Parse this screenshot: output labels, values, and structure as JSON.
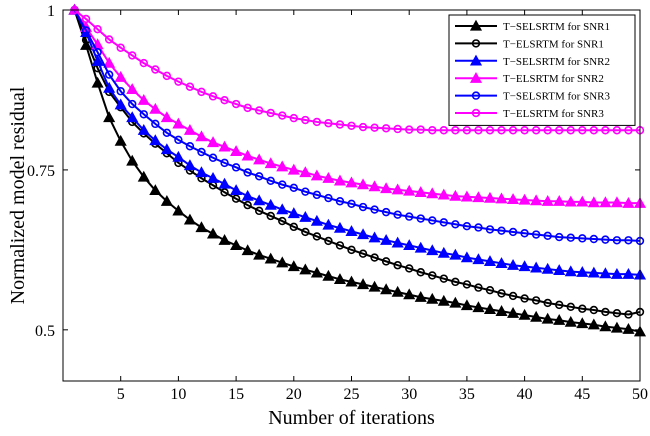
{
  "chart_data": {
    "type": "line",
    "title": "",
    "xlabel": "Number of iterations",
    "ylabel": "Normalized model residual",
    "xlim": [
      0,
      50
    ],
    "ylim": [
      0.42,
      1.0
    ],
    "x_ticks": [
      5,
      10,
      15,
      20,
      25,
      30,
      35,
      40,
      45,
      50
    ],
    "y_ticks": [
      0.5,
      0.75,
      1
    ],
    "y_tick_labels": [
      "0.5",
      "0.75",
      "1"
    ],
    "grid": false,
    "legend_position": "top-right",
    "x": [
      1,
      2,
      3,
      4,
      5,
      6,
      7,
      8,
      9,
      10,
      11,
      12,
      13,
      14,
      15,
      16,
      17,
      18,
      19,
      20,
      21,
      22,
      23,
      24,
      25,
      26,
      27,
      28,
      29,
      30,
      31,
      32,
      33,
      34,
      35,
      36,
      37,
      38,
      39,
      40,
      41,
      42,
      43,
      44,
      45,
      46,
      47,
      48,
      49,
      50
    ],
    "series": [
      {
        "name": "T−SELSRTM for SNR1",
        "color": "#000000",
        "marker": "triangle",
        "values": [
          1.0,
          0.945,
          0.886,
          0.832,
          0.795,
          0.764,
          0.739,
          0.718,
          0.701,
          0.686,
          0.672,
          0.66,
          0.65,
          0.64,
          0.632,
          0.624,
          0.617,
          0.611,
          0.605,
          0.599,
          0.594,
          0.589,
          0.584,
          0.579,
          0.575,
          0.571,
          0.567,
          0.563,
          0.559,
          0.555,
          0.551,
          0.548,
          0.545,
          0.542,
          0.538,
          0.535,
          0.532,
          0.529,
          0.526,
          0.523,
          0.52,
          0.517,
          0.515,
          0.512,
          0.51,
          0.508,
          0.505,
          0.503,
          0.501,
          0.497
        ]
      },
      {
        "name": "T−ELSRTM for SNR1",
        "color": "#000000",
        "marker": "circle",
        "values": [
          1.0,
          0.953,
          0.909,
          0.872,
          0.848,
          0.825,
          0.807,
          0.791,
          0.776,
          0.761,
          0.749,
          0.737,
          0.726,
          0.715,
          0.705,
          0.695,
          0.686,
          0.678,
          0.67,
          0.661,
          0.653,
          0.646,
          0.639,
          0.632,
          0.625,
          0.619,
          0.613,
          0.607,
          0.601,
          0.596,
          0.59,
          0.585,
          0.58,
          0.575,
          0.571,
          0.566,
          0.562,
          0.557,
          0.553,
          0.549,
          0.546,
          0.542,
          0.539,
          0.536,
          0.533,
          0.531,
          0.528,
          0.526,
          0.524,
          0.528
        ]
      },
      {
        "name": "T−SELSRTM for SNR2",
        "color": "#0000ff",
        "marker": "triangle",
        "values": [
          1.0,
          0.965,
          0.92,
          0.878,
          0.852,
          0.832,
          0.812,
          0.796,
          0.782,
          0.77,
          0.757,
          0.746,
          0.737,
          0.728,
          0.718,
          0.709,
          0.702,
          0.695,
          0.688,
          0.682,
          0.676,
          0.67,
          0.664,
          0.659,
          0.654,
          0.649,
          0.644,
          0.64,
          0.636,
          0.632,
          0.628,
          0.624,
          0.62,
          0.617,
          0.613,
          0.61,
          0.607,
          0.604,
          0.601,
          0.599,
          0.597,
          0.595,
          0.593,
          0.591,
          0.59,
          0.589,
          0.588,
          0.587,
          0.587,
          0.586
        ]
      },
      {
        "name": "T−ELSRTM for SNR2",
        "color": "#ff00ff",
        "marker": "triangle",
        "values": [
          1.0,
          0.973,
          0.946,
          0.917,
          0.895,
          0.876,
          0.859,
          0.845,
          0.832,
          0.822,
          0.812,
          0.802,
          0.793,
          0.786,
          0.779,
          0.772,
          0.766,
          0.76,
          0.755,
          0.75,
          0.746,
          0.741,
          0.737,
          0.733,
          0.73,
          0.727,
          0.724,
          0.721,
          0.719,
          0.717,
          0.715,
          0.713,
          0.711,
          0.709,
          0.708,
          0.707,
          0.706,
          0.705,
          0.704,
          0.703,
          0.702,
          0.701,
          0.701,
          0.7,
          0.7,
          0.699,
          0.699,
          0.699,
          0.698,
          0.698
        ]
      },
      {
        "name": "T−SELSRTM for SNR3",
        "color": "#0000ff",
        "marker": "circle",
        "values": [
          1.0,
          0.968,
          0.934,
          0.899,
          0.873,
          0.853,
          0.837,
          0.822,
          0.808,
          0.797,
          0.787,
          0.778,
          0.769,
          0.761,
          0.754,
          0.746,
          0.74,
          0.733,
          0.727,
          0.722,
          0.716,
          0.711,
          0.706,
          0.701,
          0.697,
          0.692,
          0.688,
          0.684,
          0.68,
          0.677,
          0.674,
          0.671,
          0.668,
          0.665,
          0.662,
          0.66,
          0.657,
          0.655,
          0.653,
          0.651,
          0.649,
          0.647,
          0.645,
          0.644,
          0.643,
          0.642,
          0.641,
          0.64,
          0.64,
          0.639
        ]
      },
      {
        "name": "T−ELSRTM for SNR3",
        "color": "#ff00ff",
        "marker": "circle",
        "values": [
          1.0,
          0.986,
          0.97,
          0.954,
          0.941,
          0.929,
          0.917,
          0.907,
          0.897,
          0.888,
          0.88,
          0.872,
          0.865,
          0.859,
          0.853,
          0.847,
          0.843,
          0.839,
          0.835,
          0.831,
          0.828,
          0.825,
          0.823,
          0.821,
          0.819,
          0.817,
          0.816,
          0.815,
          0.814,
          0.813,
          0.813,
          0.812,
          0.812,
          0.812,
          0.812,
          0.812,
          0.812,
          0.812,
          0.812,
          0.812,
          0.812,
          0.812,
          0.812,
          0.812,
          0.812,
          0.812,
          0.812,
          0.812,
          0.812,
          0.812
        ]
      }
    ]
  }
}
